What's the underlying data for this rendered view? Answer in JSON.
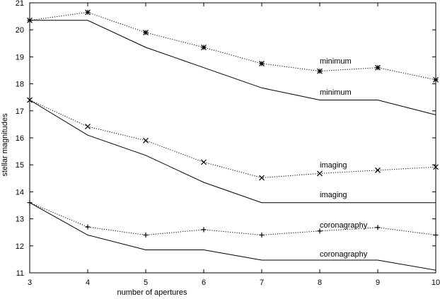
{
  "chart_data": {
    "type": "line",
    "title": "",
    "xlabel": "number of apertures",
    "ylabel": "stellar magnitudes",
    "xlim": [
      3,
      10
    ],
    "ylim": [
      11,
      21
    ],
    "x_ticks": [
      3,
      4,
      5,
      6,
      7,
      8,
      9,
      10
    ],
    "y_ticks": [
      11,
      12,
      13,
      14,
      15,
      16,
      17,
      18,
      19,
      20,
      21
    ],
    "grid": false,
    "legend": "none",
    "x": [
      3,
      4,
      5,
      6,
      7,
      8,
      9,
      10
    ],
    "series": [
      {
        "name": "minimum",
        "style": "dotted",
        "marker": "asterisk",
        "values": [
          20.35,
          20.65,
          19.9,
          19.35,
          18.75,
          18.47,
          18.6,
          18.15
        ],
        "label_at": [
          8,
          18.75
        ]
      },
      {
        "name": "minimum",
        "style": "solid",
        "marker": "none",
        "values": [
          20.35,
          20.35,
          19.35,
          18.6,
          17.85,
          17.4,
          17.4,
          16.85
        ],
        "label_at": [
          8,
          17.6
        ]
      },
      {
        "name": "imaging",
        "style": "dotted",
        "marker": "x",
        "values": [
          17.4,
          16.42,
          15.9,
          15.1,
          14.52,
          14.68,
          14.8,
          14.92
        ],
        "label_at": [
          8,
          14.9
        ]
      },
      {
        "name": "imaging",
        "style": "solid",
        "marker": "none",
        "values": [
          17.4,
          16.1,
          15.35,
          14.35,
          13.6,
          13.6,
          13.6,
          13.6
        ],
        "label_at": [
          8,
          13.8
        ]
      },
      {
        "name": "coronagraphy",
        "style": "dotted",
        "marker": "plus",
        "values": [
          13.6,
          12.7,
          12.4,
          12.6,
          12.4,
          12.55,
          12.68,
          12.4
        ],
        "label_at": [
          8,
          12.68
        ]
      },
      {
        "name": "coronagraphy",
        "style": "solid",
        "marker": "none",
        "values": [
          13.6,
          12.4,
          11.85,
          11.85,
          11.47,
          11.47,
          11.47,
          11.1
        ],
        "label_at": [
          8,
          11.6
        ]
      }
    ]
  }
}
